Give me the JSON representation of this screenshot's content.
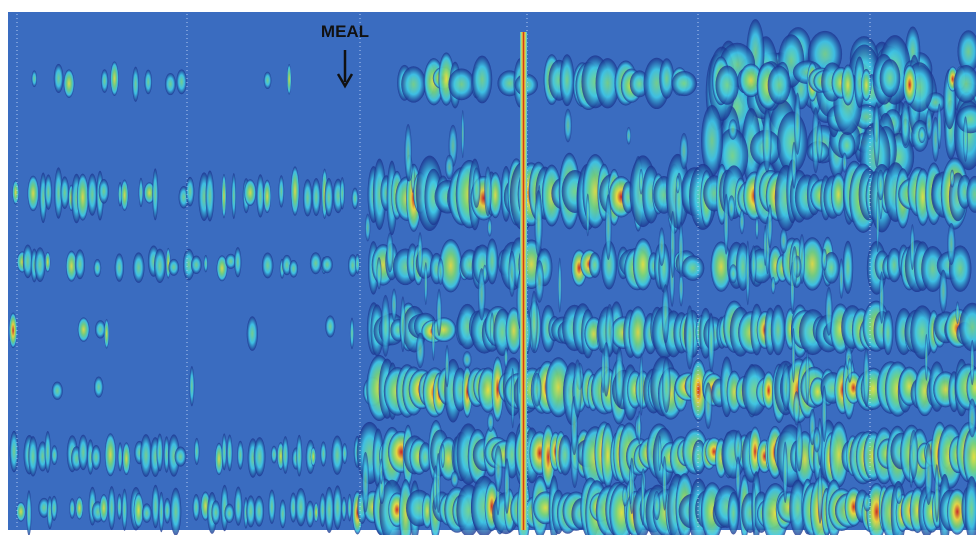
{
  "annotation": {
    "label": "MEAL"
  }
}
